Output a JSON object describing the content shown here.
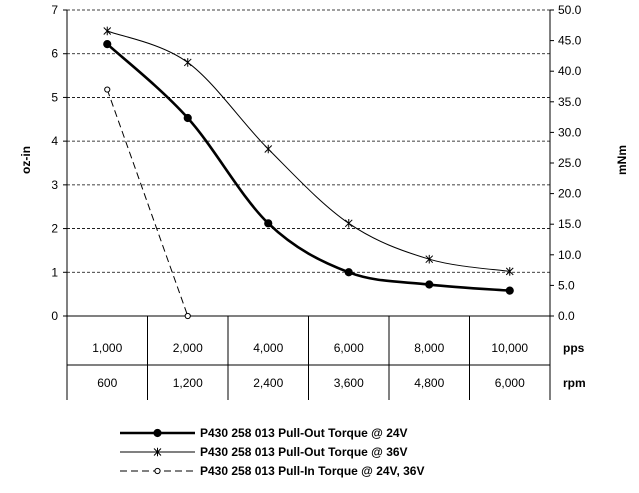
{
  "chart_data": {
    "type": "line",
    "categories": [
      "1,000",
      "2,000",
      "4,000",
      "6,000",
      "8,000",
      "10,000"
    ],
    "categories_secondary": [
      "600",
      "1,200",
      "2,400",
      "3,600",
      "4,800",
      "6,000"
    ],
    "x_unit_primary": "pps",
    "x_unit_secondary": "rpm",
    "ylabel": "oz-in",
    "y2label": "mNm",
    "ylim": [
      0,
      7
    ],
    "y2lim": [
      0,
      50
    ],
    "yticks": [
      "0",
      "1",
      "2",
      "3",
      "4",
      "5",
      "6",
      "7"
    ],
    "y2ticks": [
      "0.0",
      "5.0",
      "10.0",
      "15.0",
      "20.0",
      "25.0",
      "30.0",
      "35.0",
      "40.0",
      "45.0",
      "50.0"
    ],
    "grid": "horizontal dashed",
    "legend_position": "bottom",
    "series": [
      {
        "name": "P430 258 013 Pull-Out Torque @ 24V",
        "marker": "filled-circle",
        "style": "thick-solid",
        "values": [
          6.22,
          4.53,
          2.12,
          1.0,
          0.72,
          0.58
        ]
      },
      {
        "name": "P430 258 013 Pull-Out Torque @ 36V",
        "marker": "star",
        "style": "thin-solid",
        "values": [
          6.52,
          5.8,
          3.82,
          2.12,
          1.3,
          1.02
        ]
      },
      {
        "name": "P430 258 013 Pull-In Torque @ 24V, 36V",
        "marker": "open-circle",
        "style": "dashed",
        "values": [
          5.18,
          0.0,
          null,
          null,
          null,
          null
        ]
      }
    ]
  }
}
